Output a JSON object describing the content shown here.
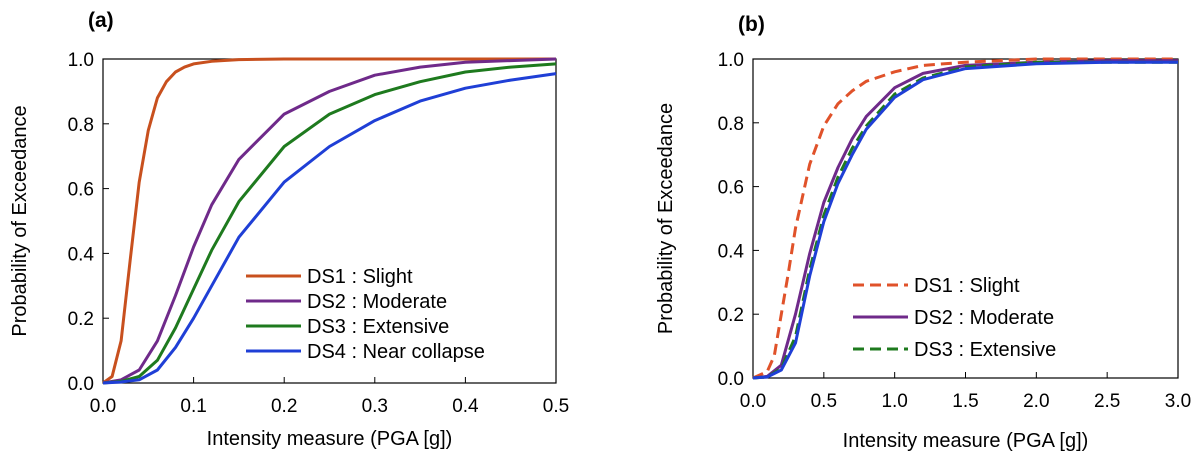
{
  "chart_data": [
    {
      "type": "line",
      "panel_label": "(a)",
      "xlabel": "Intensity measure (PGA [g])",
      "ylabel": "Probability of Exceedance",
      "xlim": [
        0,
        0.5
      ],
      "ylim": [
        0,
        1
      ],
      "xticks": [
        "0.0",
        "0.1",
        "0.2",
        "0.3",
        "0.4",
        "0.5"
      ],
      "yticks": [
        "0.0",
        "0.2",
        "0.4",
        "0.6",
        "0.8",
        "1.0"
      ],
      "grid": false,
      "legend_position": "bottom-right",
      "series": [
        {
          "name": "DS1 : Slight",
          "color": "#c8501e",
          "dash": "solid",
          "x": [
            0,
            0.01,
            0.02,
            0.03,
            0.04,
            0.05,
            0.06,
            0.07,
            0.08,
            0.09,
            0.1,
            0.12,
            0.15,
            0.2,
            0.3,
            0.5
          ],
          "y": [
            0,
            0.02,
            0.13,
            0.38,
            0.62,
            0.78,
            0.88,
            0.93,
            0.96,
            0.975,
            0.985,
            0.993,
            0.998,
            1.0,
            1.0,
            1.0
          ]
        },
        {
          "name": "DS2 : Moderate",
          "color": "#6f2a8a",
          "dash": "solid",
          "x": [
            0,
            0.02,
            0.04,
            0.06,
            0.08,
            0.1,
            0.12,
            0.15,
            0.2,
            0.25,
            0.3,
            0.35,
            0.4,
            0.45,
            0.5
          ],
          "y": [
            0,
            0.01,
            0.04,
            0.13,
            0.27,
            0.42,
            0.55,
            0.69,
            0.83,
            0.9,
            0.95,
            0.975,
            0.99,
            0.995,
            1.0
          ]
        },
        {
          "name": "DS3 : Extensive",
          "color": "#1e7a1e",
          "dash": "solid",
          "x": [
            0,
            0.02,
            0.04,
            0.06,
            0.08,
            0.1,
            0.12,
            0.15,
            0.2,
            0.25,
            0.3,
            0.35,
            0.4,
            0.45,
            0.5
          ],
          "y": [
            0,
            0.005,
            0.02,
            0.07,
            0.17,
            0.29,
            0.41,
            0.56,
            0.73,
            0.83,
            0.89,
            0.93,
            0.96,
            0.975,
            0.985
          ]
        },
        {
          "name": "DS4 : Near collapse",
          "color": "#1f3fd6",
          "dash": "solid",
          "x": [
            0,
            0.02,
            0.04,
            0.06,
            0.08,
            0.1,
            0.12,
            0.15,
            0.2,
            0.25,
            0.3,
            0.35,
            0.4,
            0.45,
            0.5
          ],
          "y": [
            0,
            0.003,
            0.01,
            0.04,
            0.11,
            0.2,
            0.3,
            0.45,
            0.62,
            0.73,
            0.81,
            0.87,
            0.91,
            0.935,
            0.955
          ]
        }
      ]
    },
    {
      "type": "line",
      "panel_label": "(b)",
      "xlabel": "Intensity measure (PGA [g])",
      "ylabel": "Probability of Exceedance",
      "xlim": [
        0,
        3.0
      ],
      "ylim": [
        0,
        1
      ],
      "xticks": [
        "0.0",
        "0.5",
        "1.0",
        "1.5",
        "2.0",
        "2.5",
        "3.0"
      ],
      "yticks": [
        "0.0",
        "0.2",
        "0.4",
        "0.6",
        "0.8",
        "1.0"
      ],
      "grid": false,
      "legend_position": "bottom-right",
      "series": [
        {
          "name": "DS1 : Slight",
          "color": "#e0522a",
          "dash": "dashed",
          "x": [
            0,
            0.1,
            0.15,
            0.2,
            0.25,
            0.3,
            0.4,
            0.5,
            0.6,
            0.7,
            0.8,
            1.0,
            1.2,
            1.5,
            2.0,
            2.5,
            3.0
          ],
          "y": [
            0,
            0.02,
            0.07,
            0.2,
            0.33,
            0.47,
            0.67,
            0.79,
            0.86,
            0.9,
            0.93,
            0.96,
            0.98,
            0.99,
            1.0,
            1.0,
            1.0
          ]
        },
        {
          "name": "DS2 : Moderate",
          "color": "#6f2a8a",
          "dash": "solid",
          "x": [
            0,
            0.1,
            0.2,
            0.3,
            0.4,
            0.5,
            0.6,
            0.7,
            0.8,
            1.0,
            1.2,
            1.5,
            2.0,
            2.5,
            3.0
          ],
          "y": [
            0,
            0.005,
            0.04,
            0.2,
            0.39,
            0.55,
            0.66,
            0.75,
            0.82,
            0.91,
            0.955,
            0.98,
            0.99,
            0.995,
            0.995
          ]
        },
        {
          "name": "DS3 : Extensive",
          "color": "#1e7a1e",
          "dash": "dashed",
          "x": [
            0,
            0.1,
            0.2,
            0.3,
            0.4,
            0.5,
            0.6,
            0.7,
            0.8,
            1.0,
            1.2,
            1.5,
            2.0,
            2.5,
            3.0
          ],
          "y": [
            0,
            0.003,
            0.03,
            0.13,
            0.34,
            0.51,
            0.63,
            0.72,
            0.79,
            0.89,
            0.94,
            0.975,
            0.99,
            0.99,
            0.99
          ]
        },
        {
          "name": "",
          "color": "#1f3fd6",
          "dash": "solid",
          "x": [
            0,
            0.1,
            0.2,
            0.3,
            0.4,
            0.5,
            0.6,
            0.7,
            0.8,
            1.0,
            1.2,
            1.5,
            2.0,
            2.5,
            3.0
          ],
          "y": [
            0,
            0.003,
            0.025,
            0.11,
            0.32,
            0.49,
            0.61,
            0.7,
            0.78,
            0.88,
            0.935,
            0.97,
            0.985,
            0.99,
            0.99
          ]
        }
      ]
    }
  ]
}
